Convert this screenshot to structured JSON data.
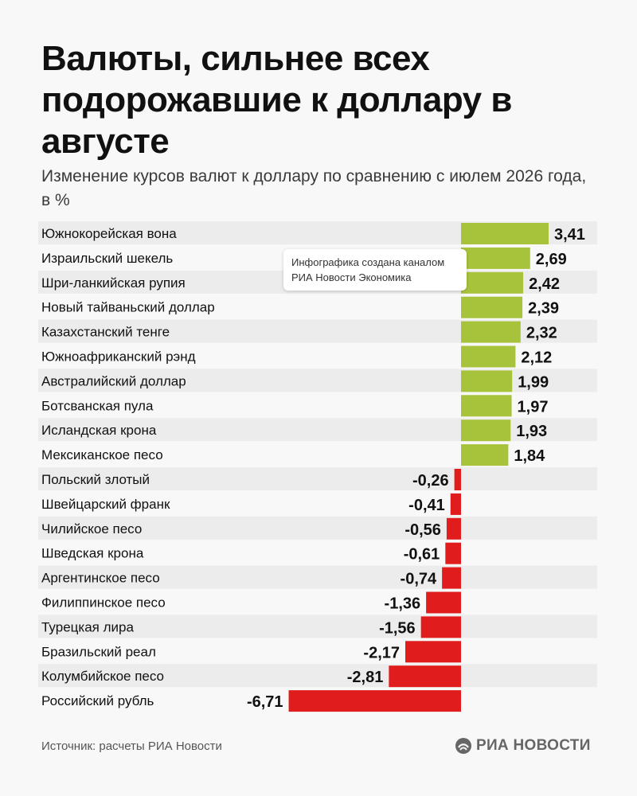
{
  "header": {
    "title": "Валюты, сильнее всех подорожавшие к доллару в августе",
    "subtitle": "Изменение курсов валют к доллару по сравнению с июлем 2026 года, в %"
  },
  "tooltip": {
    "line1": "Инфографика создана каналом",
    "line2": "РИА Новости Экономика"
  },
  "footer": {
    "source": "Источник: расчеты РИА Новости",
    "logo_text": "РИА НОВОСТИ"
  },
  "colors": {
    "positive": "#a7c33b",
    "negative": "#e01c1c"
  },
  "chart_data": {
    "type": "bar",
    "orientation": "horizontal",
    "categories": [
      "Южнокорейская вона",
      "Израильский шекель",
      "Шри-ланкийская рупия",
      "Новый тайваньский доллар",
      "Казахстанский тенге",
      "Южноафриканский рэнд",
      "Австралийский доллар",
      "Ботсванская пула",
      "Исландская крона",
      "Мексиканское песо",
      "Польский злотый",
      "Швейцарский франк",
      "Чилийское песо",
      "Шведская крона",
      "Аргентинское песо",
      "Филиппинское песо",
      "Турецкая лира",
      "Бразильский реал",
      "Колумбийское песо",
      "Российский рубль"
    ],
    "values": [
      3.41,
      2.69,
      2.42,
      2.39,
      2.32,
      2.12,
      1.99,
      1.97,
      1.93,
      1.84,
      -0.26,
      -0.41,
      -0.56,
      -0.61,
      -0.74,
      -1.36,
      -1.56,
      -2.17,
      -2.81,
      -6.71
    ],
    "value_labels": [
      "3,41",
      "2,69",
      "2,42",
      "2,39",
      "2,32",
      "2,12",
      "1,99",
      "1,97",
      "1,93",
      "1,84",
      "-0,26",
      "-0,41",
      "-0,56",
      "-0,61",
      "-0,74",
      "-1,36",
      "-1,56",
      "-2,17",
      "-2,81",
      "-6,71"
    ],
    "title": "Валюты, сильнее всех подорожавшие к доллару в августе",
    "xlabel": "",
    "ylabel": "",
    "grid": false
  }
}
